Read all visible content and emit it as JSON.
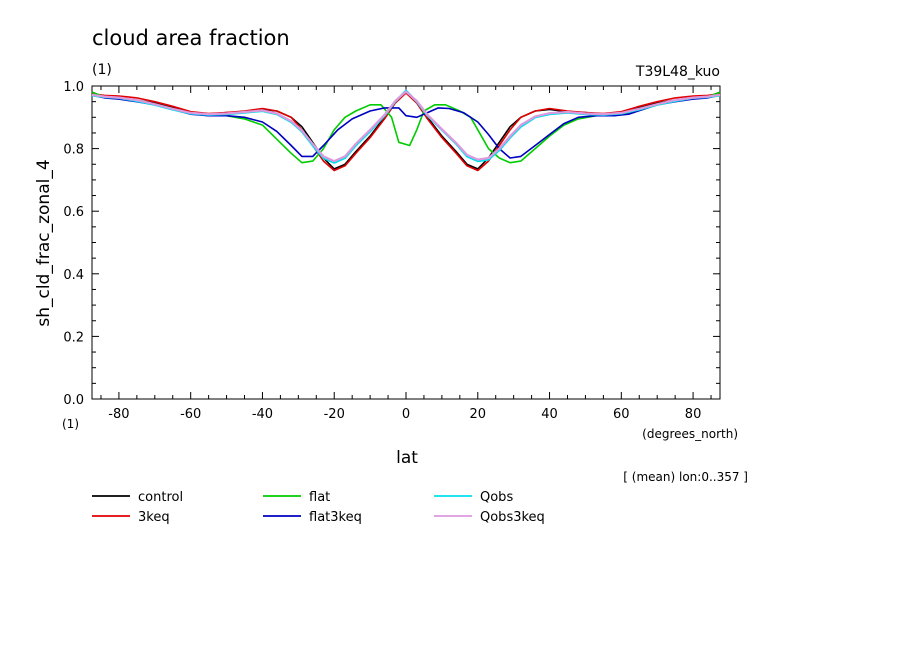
{
  "chart_data": {
    "type": "line",
    "title": "cloud area fraction",
    "subtitle_left": "(1)",
    "subtitle_right": "T39L48_kuo",
    "ylabel": "sh_cld_frac_zonal_4",
    "yunit": "(1)",
    "xlabel": "lat",
    "xunit": "(degrees_north)",
    "note": "[ (mean) lon:0..357 ]",
    "xlim": [
      -87.5,
      87.5
    ],
    "ylim": [
      0.0,
      1.0
    ],
    "xticks": [
      -80,
      -60,
      -40,
      -20,
      0,
      20,
      40,
      60,
      80
    ],
    "xtick_labels": [
      "-80",
      "-60",
      "-40",
      "-20",
      "0",
      "20",
      "40",
      "60",
      "80"
    ],
    "yticks": [
      0.0,
      0.2,
      0.4,
      0.6,
      0.8,
      1.0
    ],
    "ytick_labels": [
      "0.0",
      "0.2",
      "0.4",
      "0.6",
      "0.8",
      "1.0"
    ],
    "grid": false,
    "legend_position": "bottom",
    "series": [
      {
        "name": "control",
        "color": "#000000",
        "points": [
          [
            -87.5,
            0.98
          ],
          [
            -84,
            0.965
          ],
          [
            -80,
            0.962
          ],
          [
            -75,
            0.955
          ],
          [
            -70,
            0.945
          ],
          [
            -65,
            0.93
          ],
          [
            -60,
            0.915
          ],
          [
            -55,
            0.91
          ],
          [
            -50,
            0.915
          ],
          [
            -45,
            0.918
          ],
          [
            -40,
            0.925
          ],
          [
            -36,
            0.92
          ],
          [
            -32,
            0.9
          ],
          [
            -29,
            0.87
          ],
          [
            -26,
            0.82
          ],
          [
            -23,
            0.77
          ],
          [
            -20,
            0.735
          ],
          [
            -17,
            0.75
          ],
          [
            -14,
            0.79
          ],
          [
            -10,
            0.84
          ],
          [
            -6,
            0.9
          ],
          [
            -3,
            0.95
          ],
          [
            0,
            0.985
          ],
          [
            3,
            0.95
          ],
          [
            6,
            0.9
          ],
          [
            10,
            0.84
          ],
          [
            14,
            0.79
          ],
          [
            17,
            0.75
          ],
          [
            20,
            0.735
          ],
          [
            23,
            0.77
          ],
          [
            26,
            0.82
          ],
          [
            29,
            0.87
          ],
          [
            32,
            0.9
          ],
          [
            36,
            0.92
          ],
          [
            40,
            0.925
          ],
          [
            45,
            0.918
          ],
          [
            50,
            0.915
          ],
          [
            55,
            0.91
          ],
          [
            60,
            0.915
          ],
          [
            65,
            0.93
          ],
          [
            70,
            0.945
          ],
          [
            75,
            0.955
          ],
          [
            80,
            0.962
          ],
          [
            84,
            0.965
          ],
          [
            87.5,
            0.98
          ]
        ]
      },
      {
        "name": "3keq",
        "color": "#e00000",
        "points": [
          [
            -87.5,
            0.975
          ],
          [
            -84,
            0.97
          ],
          [
            -80,
            0.968
          ],
          [
            -75,
            0.962
          ],
          [
            -70,
            0.95
          ],
          [
            -65,
            0.935
          ],
          [
            -60,
            0.918
          ],
          [
            -55,
            0.912
          ],
          [
            -50,
            0.915
          ],
          [
            -45,
            0.92
          ],
          [
            -40,
            0.928
          ],
          [
            -36,
            0.92
          ],
          [
            -32,
            0.9
          ],
          [
            -29,
            0.86
          ],
          [
            -26,
            0.81
          ],
          [
            -23,
            0.76
          ],
          [
            -20,
            0.73
          ],
          [
            -17,
            0.745
          ],
          [
            -14,
            0.785
          ],
          [
            -10,
            0.835
          ],
          [
            -6,
            0.895
          ],
          [
            -3,
            0.945
          ],
          [
            0,
            0.978
          ],
          [
            3,
            0.945
          ],
          [
            6,
            0.895
          ],
          [
            10,
            0.835
          ],
          [
            14,
            0.785
          ],
          [
            17,
            0.745
          ],
          [
            20,
            0.73
          ],
          [
            23,
            0.76
          ],
          [
            26,
            0.81
          ],
          [
            29,
            0.86
          ],
          [
            32,
            0.9
          ],
          [
            36,
            0.92
          ],
          [
            40,
            0.928
          ],
          [
            45,
            0.92
          ],
          [
            50,
            0.915
          ],
          [
            55,
            0.912
          ],
          [
            60,
            0.918
          ],
          [
            65,
            0.935
          ],
          [
            70,
            0.95
          ],
          [
            75,
            0.962
          ],
          [
            80,
            0.968
          ],
          [
            84,
            0.97
          ],
          [
            87.5,
            0.975
          ]
        ]
      },
      {
        "name": "flat",
        "color": "#00cc00",
        "points": [
          [
            -87.5,
            0.98
          ],
          [
            -84,
            0.965
          ],
          [
            -80,
            0.96
          ],
          [
            -75,
            0.952
          ],
          [
            -70,
            0.94
          ],
          [
            -65,
            0.925
          ],
          [
            -60,
            0.912
          ],
          [
            -55,
            0.905
          ],
          [
            -50,
            0.905
          ],
          [
            -45,
            0.895
          ],
          [
            -40,
            0.875
          ],
          [
            -36,
            0.83
          ],
          [
            -32,
            0.785
          ],
          [
            -29,
            0.755
          ],
          [
            -26,
            0.76
          ],
          [
            -23,
            0.8
          ],
          [
            -20,
            0.86
          ],
          [
            -17,
            0.9
          ],
          [
            -14,
            0.92
          ],
          [
            -10,
            0.94
          ],
          [
            -7,
            0.94
          ],
          [
            -4,
            0.9
          ],
          [
            -2,
            0.82
          ],
          [
            1,
            0.81
          ],
          [
            3,
            0.86
          ],
          [
            5,
            0.92
          ],
          [
            8,
            0.94
          ],
          [
            11,
            0.94
          ],
          [
            15,
            0.92
          ],
          [
            18,
            0.9
          ],
          [
            20,
            0.86
          ],
          [
            23,
            0.8
          ],
          [
            26,
            0.77
          ],
          [
            29,
            0.755
          ],
          [
            32,
            0.76
          ],
          [
            36,
            0.8
          ],
          [
            40,
            0.84
          ],
          [
            44,
            0.875
          ],
          [
            48,
            0.895
          ],
          [
            53,
            0.905
          ],
          [
            58,
            0.905
          ],
          [
            62,
            0.912
          ],
          [
            66,
            0.925
          ],
          [
            70,
            0.94
          ],
          [
            75,
            0.952
          ],
          [
            80,
            0.96
          ],
          [
            84,
            0.965
          ],
          [
            87.5,
            0.98
          ]
        ]
      },
      {
        "name": "flat3keq",
        "color": "#0000c0",
        "points": [
          [
            -87.5,
            0.97
          ],
          [
            -84,
            0.962
          ],
          [
            -80,
            0.958
          ],
          [
            -75,
            0.95
          ],
          [
            -70,
            0.94
          ],
          [
            -65,
            0.925
          ],
          [
            -60,
            0.91
          ],
          [
            -55,
            0.905
          ],
          [
            -50,
            0.905
          ],
          [
            -45,
            0.9
          ],
          [
            -40,
            0.885
          ],
          [
            -36,
            0.855
          ],
          [
            -32,
            0.81
          ],
          [
            -29,
            0.775
          ],
          [
            -26,
            0.775
          ],
          [
            -23,
            0.81
          ],
          [
            -19,
            0.86
          ],
          [
            -15,
            0.895
          ],
          [
            -10,
            0.92
          ],
          [
            -6,
            0.93
          ],
          [
            -2,
            0.93
          ],
          [
            0,
            0.905
          ],
          [
            3,
            0.9
          ],
          [
            6,
            0.915
          ],
          [
            9,
            0.93
          ],
          [
            12,
            0.928
          ],
          [
            16,
            0.915
          ],
          [
            20,
            0.885
          ],
          [
            23,
            0.845
          ],
          [
            26,
            0.8
          ],
          [
            29,
            0.77
          ],
          [
            32,
            0.775
          ],
          [
            36,
            0.81
          ],
          [
            40,
            0.845
          ],
          [
            44,
            0.88
          ],
          [
            48,
            0.9
          ],
          [
            53,
            0.905
          ],
          [
            58,
            0.905
          ],
          [
            62,
            0.91
          ],
          [
            66,
            0.925
          ],
          [
            70,
            0.94
          ],
          [
            75,
            0.95
          ],
          [
            80,
            0.958
          ],
          [
            84,
            0.962
          ],
          [
            87.5,
            0.97
          ]
        ]
      },
      {
        "name": "Qobs",
        "color": "#00e0ee",
        "points": [
          [
            -87.5,
            0.97
          ],
          [
            -84,
            0.965
          ],
          [
            -80,
            0.962
          ],
          [
            -75,
            0.952
          ],
          [
            -70,
            0.94
          ],
          [
            -65,
            0.925
          ],
          [
            -60,
            0.912
          ],
          [
            -55,
            0.908
          ],
          [
            -50,
            0.91
          ],
          [
            -45,
            0.915
          ],
          [
            -40,
            0.92
          ],
          [
            -36,
            0.91
          ],
          [
            -32,
            0.885
          ],
          [
            -29,
            0.855
          ],
          [
            -26,
            0.81
          ],
          [
            -23,
            0.77
          ],
          [
            -20,
            0.755
          ],
          [
            -17,
            0.77
          ],
          [
            -14,
            0.81
          ],
          [
            -10,
            0.855
          ],
          [
            -6,
            0.905
          ],
          [
            -3,
            0.95
          ],
          [
            0,
            0.985
          ],
          [
            3,
            0.95
          ],
          [
            6,
            0.905
          ],
          [
            10,
            0.86
          ],
          [
            14,
            0.815
          ],
          [
            17,
            0.775
          ],
          [
            20,
            0.76
          ],
          [
            23,
            0.765
          ],
          [
            26,
            0.795
          ],
          [
            29,
            0.835
          ],
          [
            32,
            0.87
          ],
          [
            36,
            0.9
          ],
          [
            40,
            0.91
          ],
          [
            45,
            0.915
          ],
          [
            50,
            0.91
          ],
          [
            55,
            0.908
          ],
          [
            60,
            0.912
          ],
          [
            65,
            0.925
          ],
          [
            70,
            0.94
          ],
          [
            75,
            0.952
          ],
          [
            80,
            0.962
          ],
          [
            84,
            0.965
          ],
          [
            87.5,
            0.97
          ]
        ]
      },
      {
        "name": "Qobs3keq",
        "color": "#dd99dd",
        "points": [
          [
            -87.5,
            0.972
          ],
          [
            -84,
            0.966
          ],
          [
            -80,
            0.963
          ],
          [
            -75,
            0.955
          ],
          [
            -70,
            0.942
          ],
          [
            -65,
            0.927
          ],
          [
            -60,
            0.914
          ],
          [
            -55,
            0.91
          ],
          [
            -50,
            0.912
          ],
          [
            -45,
            0.917
          ],
          [
            -40,
            0.922
          ],
          [
            -36,
            0.912
          ],
          [
            -32,
            0.888
          ],
          [
            -29,
            0.858
          ],
          [
            -26,
            0.815
          ],
          [
            -23,
            0.775
          ],
          [
            -20,
            0.76
          ],
          [
            -17,
            0.775
          ],
          [
            -14,
            0.815
          ],
          [
            -10,
            0.86
          ],
          [
            -6,
            0.908
          ],
          [
            -3,
            0.952
          ],
          [
            0,
            0.982
          ],
          [
            3,
            0.952
          ],
          [
            6,
            0.908
          ],
          [
            10,
            0.862
          ],
          [
            14,
            0.818
          ],
          [
            17,
            0.78
          ],
          [
            20,
            0.765
          ],
          [
            23,
            0.77
          ],
          [
            26,
            0.8
          ],
          [
            29,
            0.84
          ],
          [
            32,
            0.875
          ],
          [
            36,
            0.903
          ],
          [
            40,
            0.913
          ],
          [
            45,
            0.917
          ],
          [
            50,
            0.912
          ],
          [
            55,
            0.91
          ],
          [
            60,
            0.914
          ],
          [
            65,
            0.927
          ],
          [
            70,
            0.942
          ],
          [
            75,
            0.955
          ],
          [
            80,
            0.963
          ],
          [
            84,
            0.966
          ],
          [
            87.5,
            0.972
          ]
        ]
      }
    ]
  }
}
